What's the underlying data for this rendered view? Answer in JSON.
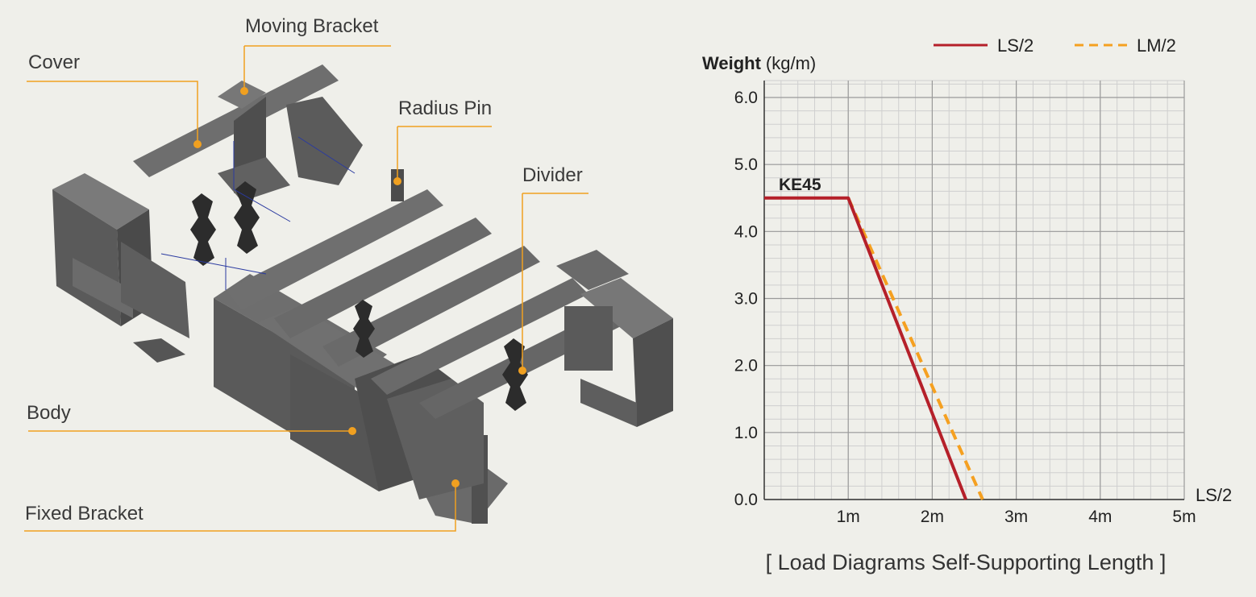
{
  "diagram": {
    "labels": {
      "moving_bracket": "Moving Bracket",
      "cover": "Cover",
      "radius_pin": "Radius Pin",
      "divider": "Divider",
      "body": "Body",
      "fixed_bracket": "Fixed Bracket"
    },
    "colors": {
      "callout": "#f0a020",
      "part": "#5b5b5b",
      "part_dark": "#3d3d3d",
      "divider": "#2a2a2a"
    }
  },
  "chart_data": {
    "type": "line",
    "title": "[ Load Diagrams Self-Supporting Length ]",
    "ylabel_bold": "Weight",
    "ylabel_unit": "(kg/m)",
    "xlabel": "LS/2",
    "xlim": [
      0,
      5
    ],
    "ylim": [
      0,
      6.2
    ],
    "x_ticks": [
      "1m",
      "2m",
      "3m",
      "4m",
      "5m"
    ],
    "x_tick_values": [
      1,
      2,
      3,
      4,
      5
    ],
    "y_ticks": [
      "0.0",
      "1.0",
      "2.0",
      "3.0",
      "4.0",
      "5.0",
      "6.0"
    ],
    "y_tick_values": [
      0,
      1,
      2,
      3,
      4,
      5,
      6
    ],
    "grid": true,
    "annotation": "KE45",
    "legend_position": "top-right",
    "series": [
      {
        "name": "LS/2",
        "color": "#b5202a",
        "style": "solid",
        "x": [
          0,
          1.0,
          2.4
        ],
        "y": [
          4.5,
          4.5,
          0
        ]
      },
      {
        "name": "LM/2",
        "color": "#f5a020",
        "style": "dashed",
        "x": [
          1.0,
          2.6
        ],
        "y": [
          4.5,
          0
        ]
      }
    ]
  }
}
